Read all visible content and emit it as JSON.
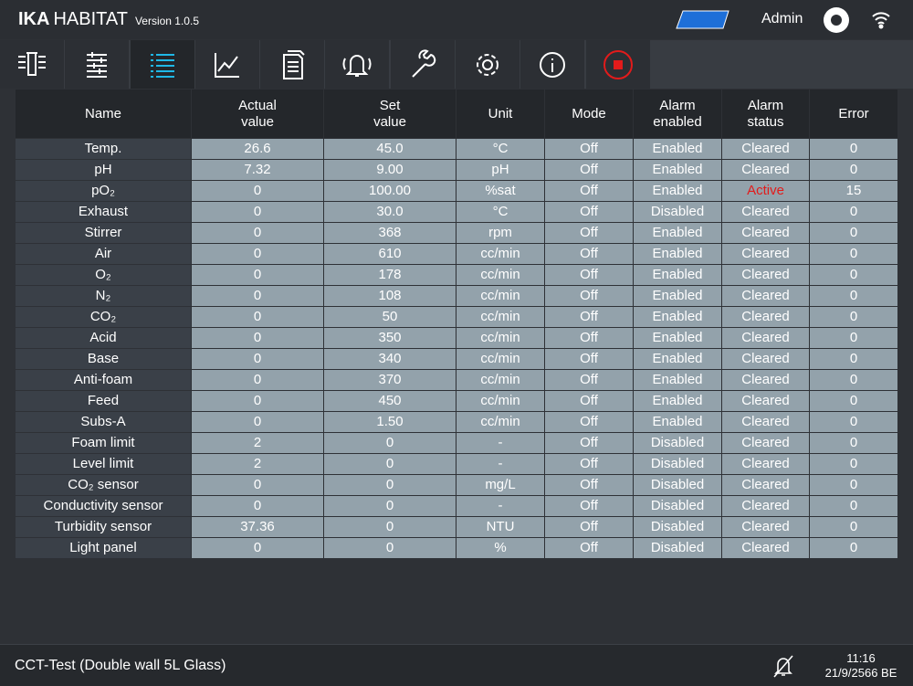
{
  "header": {
    "logo": "IKA",
    "product": "HABITAT",
    "version": "Version 1.0.5",
    "user": "Admin"
  },
  "table": {
    "columns": [
      [
        "Name"
      ],
      [
        "Actual",
        "value"
      ],
      [
        "Set",
        "value"
      ],
      [
        "Unit"
      ],
      [
        "Mode"
      ],
      [
        "Alarm",
        "enabled"
      ],
      [
        "Alarm",
        "status"
      ],
      [
        "Error"
      ]
    ],
    "rows": [
      [
        "Temp.",
        "26.6",
        "45.0",
        "°C",
        "Off",
        "Enabled",
        "Cleared",
        "0"
      ],
      [
        "pH",
        "7.32",
        "9.00",
        "pH",
        "Off",
        "Enabled",
        "Cleared",
        "0"
      ],
      [
        "pO₂",
        "0",
        "100.00",
        "%sat",
        "Off",
        "Enabled",
        "Active",
        "15"
      ],
      [
        "Exhaust",
        "0",
        "30.0",
        "°C",
        "Off",
        "Disabled",
        "Cleared",
        "0"
      ],
      [
        "Stirrer",
        "0",
        "368",
        "rpm",
        "Off",
        "Enabled",
        "Cleared",
        "0"
      ],
      [
        "Air",
        "0",
        "610",
        "cc/min",
        "Off",
        "Enabled",
        "Cleared",
        "0"
      ],
      [
        "O₂",
        "0",
        "178",
        "cc/min",
        "Off",
        "Enabled",
        "Cleared",
        "0"
      ],
      [
        "N₂",
        "0",
        "108",
        "cc/min",
        "Off",
        "Enabled",
        "Cleared",
        "0"
      ],
      [
        "CO₂",
        "0",
        "50",
        "cc/min",
        "Off",
        "Enabled",
        "Cleared",
        "0"
      ],
      [
        "Acid",
        "0",
        "350",
        "cc/min",
        "Off",
        "Enabled",
        "Cleared",
        "0"
      ],
      [
        "Base",
        "0",
        "340",
        "cc/min",
        "Off",
        "Enabled",
        "Cleared",
        "0"
      ],
      [
        "Anti-foam",
        "0",
        "370",
        "cc/min",
        "Off",
        "Enabled",
        "Cleared",
        "0"
      ],
      [
        "Feed",
        "0",
        "450",
        "cc/min",
        "Off",
        "Enabled",
        "Cleared",
        "0"
      ],
      [
        "Subs-A",
        "0",
        "1.50",
        "cc/min",
        "Off",
        "Enabled",
        "Cleared",
        "0"
      ],
      [
        "Foam limit",
        "2",
        "0",
        "-",
        "Off",
        "Disabled",
        "Cleared",
        "0"
      ],
      [
        "Level limit",
        "2",
        "0",
        "-",
        "Off",
        "Disabled",
        "Cleared",
        "0"
      ],
      [
        "CO₂ sensor",
        "0",
        "0",
        "mg/L",
        "Off",
        "Disabled",
        "Cleared",
        "0"
      ],
      [
        "Conductivity sensor",
        "0",
        "0",
        "-",
        "Off",
        "Disabled",
        "Cleared",
        "0"
      ],
      [
        "Turbidity sensor",
        "37.36",
        "0",
        "NTU",
        "Off",
        "Disabled",
        "Cleared",
        "0"
      ],
      [
        "Light panel",
        "0",
        "0",
        "%",
        "Off",
        "Disabled",
        "Cleared",
        "0"
      ]
    ]
  },
  "footer": {
    "project": "CCT-Test (Double wall 5L Glass)",
    "time": "11:16",
    "date": "21/9/2566 BE"
  }
}
